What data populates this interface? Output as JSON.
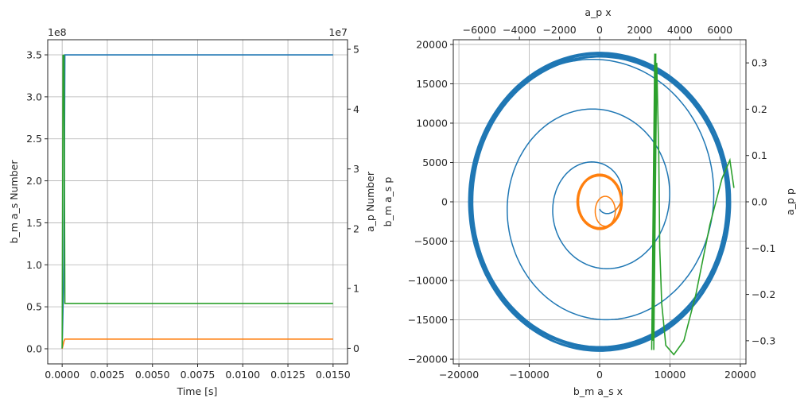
{
  "chart_data": [
    {
      "type": "line",
      "panel": "left",
      "title": "",
      "xlabel": "Time [s]",
      "ylabel_left": "b_m a_s Number",
      "ylabel_right": "a_p Number",
      "ylabel_right2": "b_m a_s p",
      "left_offset": "1e8",
      "right_offset": "1e7",
      "xlim": [
        -0.0008,
        0.0158
      ],
      "ylim_left": [
        -0.18,
        3.68
      ],
      "ylim_right": [
        -0.26,
        5.16
      ],
      "x_ticks": [
        "0.0000",
        "0.0025",
        "0.0050",
        "0.0075",
        "0.0100",
        "0.0125",
        "0.0150"
      ],
      "x_tick_values": [
        0,
        0.0025,
        0.005,
        0.0075,
        0.01,
        0.0125,
        0.015
      ],
      "y_left_ticks": [
        "0.0",
        "0.5",
        "1.0",
        "1.5",
        "2.0",
        "2.5",
        "3.0",
        "3.5"
      ],
      "y_left_tick_values": [
        0,
        0.5,
        1,
        1.5,
        2,
        2.5,
        3,
        3.5
      ],
      "y_right_ticks": [
        "0",
        "1",
        "2",
        "3",
        "4",
        "5"
      ],
      "y_right_tick_values": [
        0,
        1,
        2,
        3,
        4,
        5
      ],
      "grid": true,
      "series": [
        {
          "axis": "left",
          "color": "#1f77b4",
          "x": [
            0,
            0.0001,
            0.00015,
            0.015
          ],
          "y": [
            0.0,
            1.0,
            3.5,
            3.5
          ]
        },
        {
          "axis": "left",
          "color": "#ff7f0e",
          "x": [
            0,
            0.0001,
            0.00015,
            0.015
          ],
          "y": [
            0.0,
            0.09,
            0.115,
            0.115
          ]
        },
        {
          "axis": "right",
          "color": "#2ca02c",
          "x": [
            0,
            5e-05,
            0.0001,
            0.00015,
            0.015
          ],
          "y": [
            0.0,
            4.9,
            4.9,
            0.75,
            0.75
          ]
        }
      ]
    },
    {
      "type": "line",
      "panel": "right",
      "title": "",
      "xlabel_bottom": "b_m a_s x",
      "xlabel_top": "a_p x",
      "ylabel_right": "a_p p",
      "xlim_bottom": [
        -20800,
        20800
      ],
      "ylim_left": [
        -20600,
        20600
      ],
      "xlim_top": [
        -7300,
        7300
      ],
      "ylim_right": [
        -0.35,
        0.35
      ],
      "x_bottom_ticks": [
        "−20000",
        "−10000",
        "0",
        "10000",
        "20000"
      ],
      "x_bottom_tick_values": [
        -20000,
        -10000,
        0,
        10000,
        20000
      ],
      "y_left_ticks": [
        "−20000",
        "−15000",
        "−10000",
        "−5000",
        "0",
        "5000",
        "10000",
        "15000",
        "20000"
      ],
      "y_left_tick_values": [
        -20000,
        -15000,
        -10000,
        -5000,
        0,
        5000,
        10000,
        15000,
        20000
      ],
      "x_top_ticks": [
        "−6000",
        "−4000",
        "−2000",
        "0",
        "2000",
        "4000",
        "6000"
      ],
      "x_top_tick_values": [
        -6000,
        -4000,
        -2000,
        0,
        2000,
        4000,
        6000
      ],
      "y_right_ticks": [
        "−0.3",
        "−0.2",
        "−0.1",
        "0.0",
        "0.1",
        "0.2",
        "0.3"
      ],
      "y_right_tick_values": [
        -0.3,
        -0.2,
        -0.1,
        0,
        0.1,
        0.2,
        0.3
      ],
      "grid": true,
      "series": [
        {
          "axis": "bottom-left",
          "color": "#1f77b4",
          "shape": "spiral-orbit",
          "center": [
            0,
            0
          ],
          "orbit_radius": 18700,
          "orbit_radius_spread": 300,
          "inner_radius_start": 900
        },
        {
          "axis": "bottom-left",
          "color": "#ff7f0e",
          "shape": "small-orbit",
          "center": [
            0,
            0
          ],
          "orbit_radius_x": 3100,
          "orbit_radius_y": 3400,
          "inner_loop_center": [
            800,
            -1200
          ],
          "inner_loop_radius": 1900
        },
        {
          "axis": "top-right",
          "color": "#2ca02c",
          "shape": "phase-trace",
          "x": [
            2600,
            2750,
            2650,
            2800,
            2700,
            2850,
            2950,
            3000,
            3100,
            3300,
            3700,
            4200,
            4800,
            5500,
            6100,
            6500,
            6700
          ],
          "y": [
            -0.32,
            0.32,
            -0.3,
            0.32,
            -0.32,
            0.3,
            0.1,
            -0.1,
            -0.22,
            -0.31,
            -0.33,
            -0.3,
            -0.2,
            -0.05,
            0.05,
            0.09,
            0.03
          ]
        }
      ]
    }
  ]
}
